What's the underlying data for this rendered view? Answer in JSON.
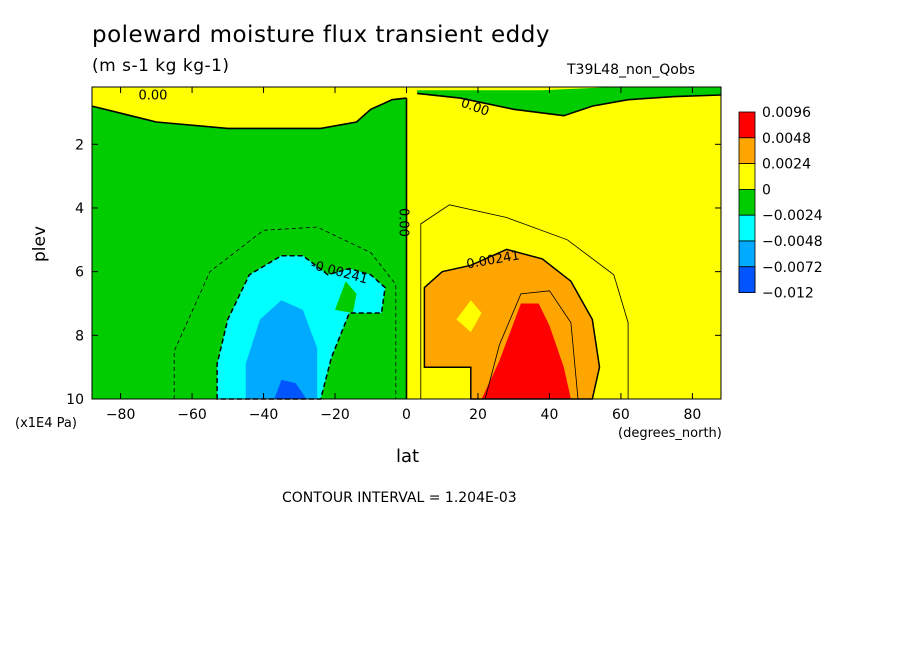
{
  "chart_data": {
    "type": "heatmap",
    "title": "poleward moisture flux transient eddy",
    "subtitle": "(m s-1 kg kg-1)",
    "run_label": "T39L48_non_Qobs",
    "xlabel": "lat",
    "x_unit": "(degrees_north)",
    "ylabel": "plev",
    "y_unit": "(x1E4 Pa)",
    "xlim": [
      -88,
      88
    ],
    "ylim": [
      10,
      0.2
    ],
    "x_ticks": [
      "-80",
      "-60",
      "-40",
      "-20",
      "0",
      "20",
      "40",
      "60",
      "80"
    ],
    "y_ticks": [
      "2",
      "4",
      "6",
      "8",
      "10"
    ],
    "contour_interval_text": "CONTOUR INTERVAL = 1.204E-03",
    "contour_labels": [
      "0.00",
      "0.00",
      "0.00",
      "-0.00241",
      "0.00241"
    ],
    "legend": [
      {
        "label": "0.0096",
        "color": "#ff0000"
      },
      {
        "label": "0.0048",
        "color": "#ffa500"
      },
      {
        "label": "0.0024",
        "color": "#ffff00"
      },
      {
        "label": "0",
        "color": "#00cc00"
      },
      {
        "label": "−0.0024",
        "color": "#00ffff"
      },
      {
        "label": "−0.0048",
        "color": "#00aaff"
      },
      {
        "label": "−0.0072",
        "color": "#0055ff"
      },
      {
        "label": "−0.012",
        "color": ""
      }
    ],
    "regions": [
      {
        "name": "upper-band",
        "level": "0 to 0.0024",
        "color": "#ffff00"
      },
      {
        "name": "southern-hemisphere",
        "level": "-0.0024 to 0",
        "color": "#00cc00"
      },
      {
        "name": "northern-hemisphere",
        "level": "0 to 0.0024",
        "color": "#ffff00"
      },
      {
        "name": "southern-eddy-outer",
        "level": "-0.0048 to -0.0024",
        "color": "#00ffff"
      },
      {
        "name": "southern-eddy-inner",
        "level": "-0.0072 to -0.0048",
        "color": "#00aaff"
      },
      {
        "name": "southern-eddy-core",
        "level": "below -0.0072",
        "color": "#0055ff"
      },
      {
        "name": "northern-eddy-outer",
        "level": "0.0024 to 0.0048",
        "color": "#ffa500"
      },
      {
        "name": "northern-eddy-core",
        "level": "above 0.0048",
        "color": "#ff0000"
      }
    ]
  }
}
